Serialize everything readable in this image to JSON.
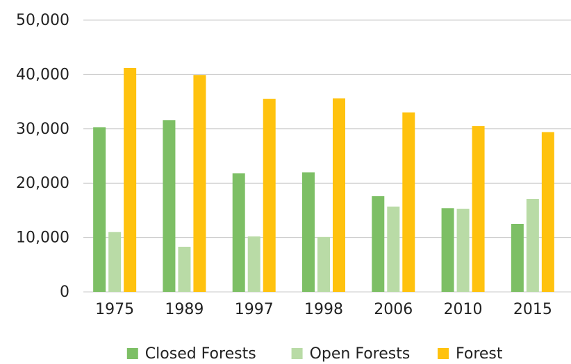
{
  "chart_data": {
    "type": "bar",
    "categories": [
      "1975",
      "1989",
      "1997",
      "1998",
      "2006",
      "2010",
      "2015"
    ],
    "series": [
      {
        "name": "Closed Forests",
        "color": "#7dbf65",
        "values": [
          30300,
          31600,
          21800,
          22000,
          17600,
          15400,
          12500
        ]
      },
      {
        "name": "Open Forests",
        "color": "#b9dba6",
        "values": [
          11000,
          8300,
          10200,
          10100,
          15700,
          15300,
          17100
        ]
      },
      {
        "name": "Forest",
        "color": "#ffc20e",
        "values": [
          41200,
          39900,
          35500,
          35600,
          33000,
          30500,
          29400
        ]
      }
    ],
    "ylim": [
      0,
      50000
    ],
    "yticks": [
      0,
      {
        "value": 10000,
        "label": "10,000"
      },
      {
        "value": 20000,
        "label": "20,000"
      },
      {
        "value": 30000,
        "label": "30,000"
      },
      {
        "value": 40000,
        "label": "40,000"
      },
      {
        "value": 50000,
        "label": "50,000"
      }
    ],
    "grid": true,
    "legend": "bottom"
  }
}
